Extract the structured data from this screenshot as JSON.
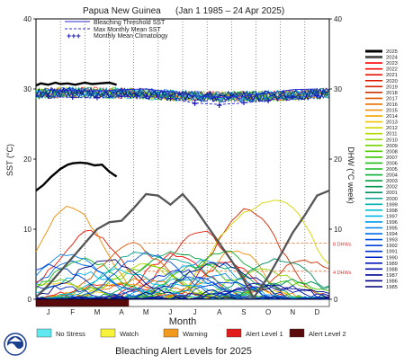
{
  "header": {
    "region": "Papua New Guinea",
    "period": "(Jan 1 1985 – 24 Apr 2025)"
  },
  "legend_top": [
    {
      "label": "Bleaching Threshold SST",
      "color": "#2b2bd6",
      "style": "solid"
    },
    {
      "label": "Max Monthly Mean SST",
      "color": "#2b2bd6",
      "style": "dashed"
    },
    {
      "label": "Monthly Mean Climatology",
      "color": "#1a1ab0",
      "style": "plus"
    }
  ],
  "axes": {
    "ylabel_left": "SST (°C)",
    "ylabel_right": "DHW (°C week)",
    "xlabel": "Month",
    "ylim": [
      0,
      40
    ],
    "yticks": [
      0,
      10,
      20,
      30,
      40
    ],
    "months": [
      "J",
      "F",
      "M",
      "A",
      "M",
      "J",
      "J",
      "A",
      "S",
      "O",
      "N",
      "D"
    ]
  },
  "dhw_refs": {
    "eight": "8 DHWs",
    "four": "4 DHWs"
  },
  "alert_levels": {
    "title": "Bleaching Alert Levels for 2025",
    "items": [
      {
        "label": "No Stress",
        "color": "#5ee8f0"
      },
      {
        "label": "Watch",
        "color": "#f7f23a"
      },
      {
        "label": "Warning",
        "color": "#f29a1e"
      },
      {
        "label": "Alert Level 1",
        "color": "#e21b1b"
      },
      {
        "label": "Alert Level 2",
        "color": "#5a0a0a"
      }
    ]
  },
  "chart_data": {
    "type": "line",
    "title": "Papua New Guinea (Jan 1 1985 – 24 Apr 2025)",
    "xlabel": "Month",
    "ylabel": "SST (°C)",
    "y2label": "DHW (°C week)",
    "ylim": [
      0,
      40
    ],
    "x_range": [
      0,
      12
    ],
    "grid": "vertical dotted",
    "years": [
      "2025",
      "2024",
      "2023",
      "2022",
      "2021",
      "2020",
      "2019",
      "2018",
      "2017",
      "2016",
      "2015",
      "2014",
      "2013",
      "2012",
      "2011",
      "2010",
      "2009",
      "2008",
      "2007",
      "2006",
      "2005",
      "2004",
      "2003",
      "2002",
      "2001",
      "2000",
      "1999",
      "1998",
      "1997",
      "1996",
      "1995",
      "1994",
      "1993",
      "1992",
      "1991",
      "1990",
      "1989",
      "1988",
      "1987",
      "1986",
      "1985"
    ],
    "year_colors": [
      "#000000",
      "#555555",
      "#ff0000",
      "#f20a00",
      "#e81200",
      "#dd1a00",
      "#d32600",
      "#cc3200",
      "#dd5500",
      "#e87000",
      "#ef8a00",
      "#f3a600",
      "#f0c400",
      "#d4d400",
      "#b4d800",
      "#93d600",
      "#72d200",
      "#51cc00",
      "#38c400",
      "#22bc10",
      "#12b820",
      "#08b030",
      "#04a040",
      "#009650",
      "#008c60",
      "#00a090",
      "#00b0b0",
      "#00c0d0",
      "#00b4e8",
      "#0098f0",
      "#0080f0",
      "#0068e8",
      "#0050e0",
      "#0040d8",
      "#0030d0",
      "#0024c4",
      "#0018b8",
      "#0010a8",
      "#000898",
      "#000088",
      "#000078"
    ],
    "series": [
      {
        "name": "2025",
        "quantity": "SST",
        "x": [
          0.0,
          0.2,
          0.5,
          0.8,
          1.0,
          1.3,
          1.6,
          2.0,
          2.3,
          2.6,
          3.0,
          3.3
        ],
        "y": [
          30.5,
          30.8,
          30.6,
          30.9,
          30.7,
          30.8,
          30.6,
          30.9,
          30.7,
          30.8,
          30.9,
          30.6
        ]
      },
      {
        "name": "2025",
        "quantity": "DHW",
        "x": [
          0.0,
          0.3,
          0.6,
          1.0,
          1.3,
          1.5,
          1.8,
          2.1,
          2.4,
          2.7,
          3.0,
          3.3
        ],
        "y": [
          15.5,
          16.3,
          17.4,
          18.6,
          19.2,
          19.4,
          19.5,
          19.4,
          19.1,
          19.2,
          18.2,
          17.5
        ]
      },
      {
        "name": "2024",
        "quantity": "DHW",
        "x": [
          0.0,
          0.5,
          1.0,
          1.5,
          2.0,
          2.5,
          3.0,
          3.5,
          4.0,
          4.5,
          5.0,
          5.5,
          6.0,
          6.5,
          7.0,
          7.5,
          8.0,
          8.5,
          8.9,
          9.5,
          10.0,
          10.5,
          11.0,
          11.5,
          12.0
        ],
        "y": [
          0.3,
          2.0,
          4.0,
          6.0,
          8.0,
          10.0,
          11.0,
          11.2,
          13.0,
          15.0,
          14.8,
          13.5,
          15.0,
          13.0,
          10.5,
          8.0,
          5.5,
          2.8,
          0.2,
          3.2,
          6.3,
          9.5,
          12.0,
          14.8,
          15.5
        ]
      }
    ],
    "max_monthly_mean_sst": [
      28.9,
      28.8,
      28.7,
      28.9,
      29.0,
      28.6,
      28.0,
      27.8,
      28.0,
      28.4,
      28.9,
      29.0
    ],
    "bleaching_threshold_sst": [
      29.9,
      29.8,
      29.7,
      29.9,
      30.0,
      29.6,
      29.0,
      28.8,
      29.0,
      29.4,
      29.9,
      30.0
    ],
    "monthly_mean_climatology": [
      28.9,
      28.8,
      28.7,
      28.9,
      28.9,
      28.6,
      27.9,
      27.6,
      28.0,
      28.3,
      28.8,
      29.0
    ]
  }
}
